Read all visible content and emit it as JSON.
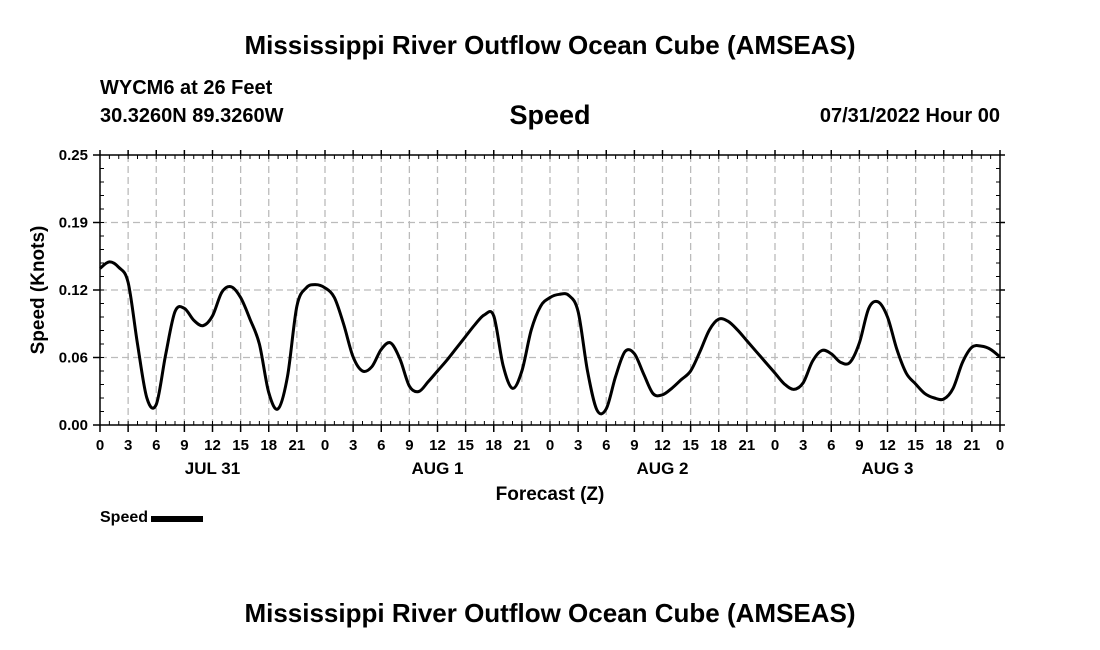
{
  "page": {
    "title_top": "Mississippi River Outflow Ocean Cube (AMSEAS)",
    "title_bottom": "Mississippi River Outflow Ocean Cube (AMSEAS)",
    "station": "WYCM6 at 26 Feet",
    "coordinates": "30.3260N  89.3260W",
    "datetime": "07/31/2022 Hour 00"
  },
  "chart_data": {
    "type": "line",
    "title": "Speed",
    "xlabel": "Forecast (Z)",
    "ylabel": "Speed (Knots)",
    "ylim": [
      0,
      0.25
    ],
    "xlim": [
      0,
      96
    ],
    "grid": true,
    "y_ticks": [
      "0.00",
      "0.06",
      "0.12",
      "0.19",
      "0.25"
    ],
    "y_tick_values": [
      0,
      0.0625,
      0.125,
      0.1875,
      0.25
    ],
    "x_ticks": [
      "0",
      "3",
      "6",
      "9",
      "12",
      "15",
      "18",
      "21",
      "0",
      "3",
      "6",
      "9",
      "12",
      "15",
      "18",
      "21",
      "0",
      "3",
      "6",
      "9",
      "12",
      "15",
      "18",
      "21",
      "0",
      "3",
      "6",
      "9",
      "12",
      "15",
      "18",
      "21",
      "0"
    ],
    "x_tick_hours": [
      0,
      3,
      6,
      9,
      12,
      15,
      18,
      21,
      24,
      27,
      30,
      33,
      36,
      39,
      42,
      45,
      48,
      51,
      54,
      57,
      60,
      63,
      66,
      69,
      72,
      75,
      78,
      81,
      84,
      87,
      90,
      93,
      96
    ],
    "day_labels": [
      {
        "label": "JUL 31",
        "hour": 12
      },
      {
        "label": "AUG 1",
        "hour": 36
      },
      {
        "label": "AUG 2",
        "hour": 60
      },
      {
        "label": "AUG 3",
        "hour": 84
      }
    ],
    "legend": [
      {
        "name": "Speed",
        "color": "#000000"
      }
    ],
    "series": [
      {
        "name": "Speed",
        "x": [
          0,
          1,
          2,
          3,
          4,
          5,
          6,
          7,
          8,
          9,
          10,
          11,
          12,
          13,
          14,
          15,
          16,
          17,
          18,
          19,
          20,
          21,
          22,
          23,
          24,
          25,
          26,
          27,
          28,
          29,
          30,
          31,
          32,
          33,
          34,
          35,
          36,
          37,
          38,
          39,
          40,
          41,
          42,
          43,
          44,
          45,
          46,
          47,
          48,
          49,
          50,
          51,
          52,
          53,
          54,
          55,
          56,
          57,
          58,
          59,
          60,
          61,
          62,
          63,
          64,
          65,
          66,
          67,
          68,
          69,
          70,
          71,
          72,
          73,
          74,
          75,
          76,
          77,
          78,
          79,
          80,
          81,
          82,
          83,
          84,
          85,
          86,
          87,
          88,
          89,
          90,
          91,
          92,
          93,
          94,
          95,
          96
        ],
        "values": [
          0.145,
          0.151,
          0.146,
          0.132,
          0.075,
          0.025,
          0.019,
          0.065,
          0.105,
          0.108,
          0.097,
          0.092,
          0.101,
          0.123,
          0.128,
          0.118,
          0.098,
          0.075,
          0.03,
          0.015,
          0.045,
          0.11,
          0.127,
          0.13,
          0.127,
          0.118,
          0.093,
          0.063,
          0.05,
          0.054,
          0.07,
          0.076,
          0.061,
          0.036,
          0.031,
          0.04,
          0.05,
          0.06,
          0.071,
          0.082,
          0.093,
          0.102,
          0.101,
          0.055,
          0.034,
          0.05,
          0.088,
          0.11,
          0.118,
          0.121,
          0.12,
          0.105,
          0.05,
          0.014,
          0.015,
          0.045,
          0.068,
          0.066,
          0.047,
          0.029,
          0.028,
          0.034,
          0.042,
          0.05,
          0.068,
          0.088,
          0.098,
          0.096,
          0.088,
          0.078,
          0.068,
          0.058,
          0.048,
          0.038,
          0.033,
          0.039,
          0.059,
          0.069,
          0.066,
          0.058,
          0.058,
          0.076,
          0.108,
          0.114,
          0.1,
          0.07,
          0.048,
          0.038,
          0.029,
          0.025,
          0.024,
          0.034,
          0.058,
          0.072,
          0.073,
          0.07,
          0.063
        ]
      }
    ]
  }
}
